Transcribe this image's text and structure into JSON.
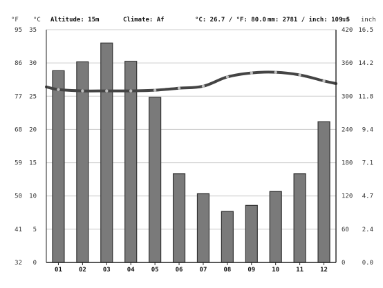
{
  "header": {
    "altitude": "Altitude: 15m",
    "climate": "Climate: Af",
    "averages": "°C: 26.7 / °F: 80.0",
    "totals": "mm: 2781 / inch: 109.5"
  },
  "units": {
    "fahrenheit": "°F",
    "celsius": "°C",
    "mm": "mm",
    "inch": "inch"
  },
  "axes": {
    "fahrenheit_ticks": [
      "32",
      "41",
      "50",
      "59",
      "68",
      "77",
      "86",
      "95"
    ],
    "celsius_ticks": [
      "0",
      "5",
      "10",
      "15",
      "20",
      "25",
      "30",
      "35"
    ],
    "mm_ticks": [
      "0",
      "60",
      "120",
      "180",
      "240",
      "300",
      "360",
      "420"
    ],
    "inch_ticks": [
      "0.0",
      "2.4",
      "4.7",
      "7.1",
      "9.4",
      "11.8",
      "14.2",
      "16.5"
    ]
  },
  "chart_data": {
    "type": "bar",
    "categories": [
      "01",
      "02",
      "03",
      "04",
      "05",
      "06",
      "07",
      "08",
      "09",
      "10",
      "11",
      "12"
    ],
    "series": [
      {
        "type": "bar",
        "axis": "mm",
        "values": [
          346,
          362,
          396,
          363,
          298,
          160,
          124,
          92,
          103,
          128,
          160,
          254
        ]
      },
      {
        "type": "line",
        "axis": "celsius",
        "values": [
          26.0,
          25.8,
          25.8,
          25.8,
          25.9,
          26.2,
          26.5,
          27.9,
          28.5,
          28.6,
          28.2,
          27.3
        ]
      }
    ],
    "ylim_celsius": [
      0,
      35
    ],
    "ylim_mm": [
      0,
      420
    ],
    "grid": true,
    "colors": {
      "bar": "#7a7a7a",
      "bar_edge": "#333333",
      "line": "#444444",
      "grid": "#cccccc"
    }
  }
}
